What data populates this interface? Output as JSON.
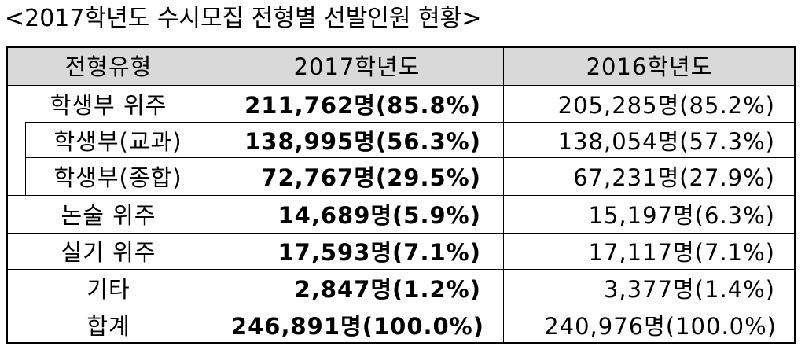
{
  "header": {
    "title": "<2017학년도 수시모집 전형별 선발인원 현황>"
  },
  "table": {
    "columns": [
      "전형유형",
      "2017학년도",
      "2016학년도"
    ],
    "rows": [
      [
        "학생부 위주",
        "211,762명(85.8%)",
        "205,285명(85.2%)"
      ],
      [
        "학생부(교과)",
        "138,995명(56.3%)",
        "138,054명(57.3%)"
      ],
      [
        "학생부(종합)",
        "72,767명(29.5%)",
        "67,231명(27.9%)"
      ],
      [
        "논술 위주",
        "14,689명(5.9%)",
        "15,197명(6.3%)"
      ],
      [
        "실기 위주",
        "17,593명(7.1%)",
        "17,117명(7.1%)"
      ],
      [
        "기타",
        "2,847명(1.2%)",
        "3,377명(1.4%)"
      ],
      [
        "합계",
        "246,891명(100.0%)",
        "240,976명(100.0%)"
      ]
    ]
  }
}
